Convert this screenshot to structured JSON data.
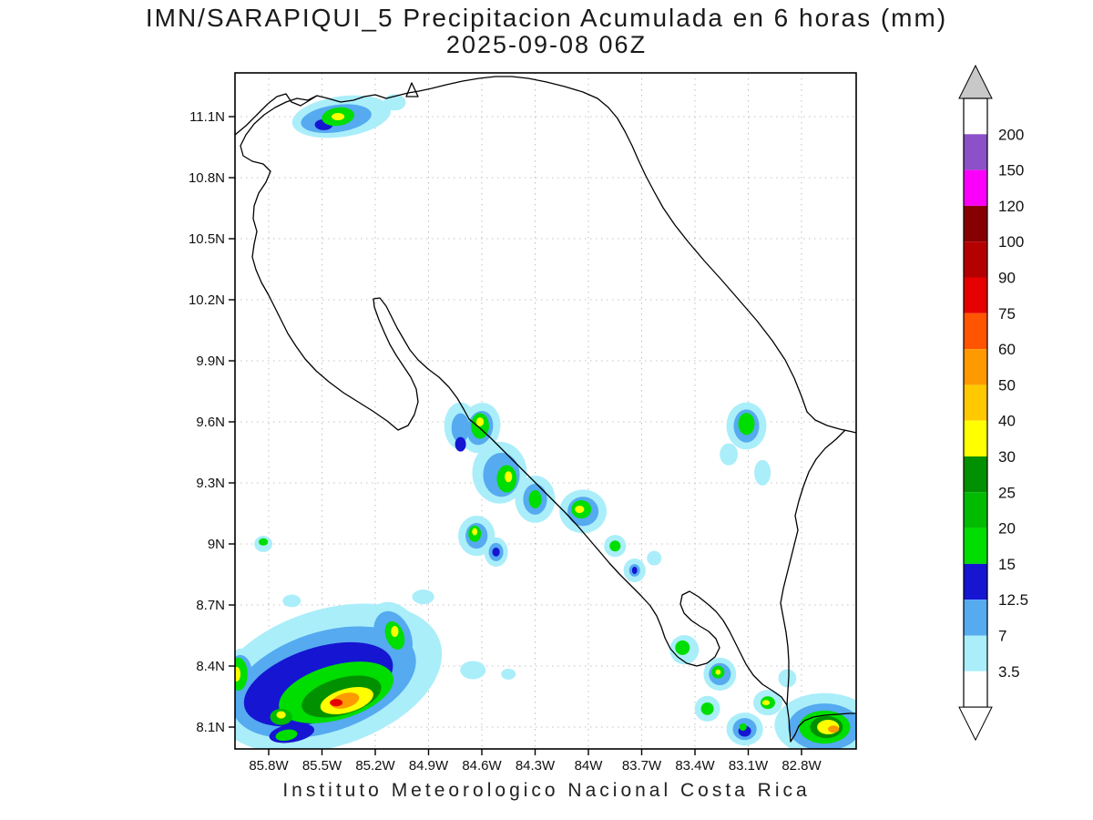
{
  "title_line1": "IMN/SARAPIQUI_5 Precipitacion Acumulada en 6 horas (mm)",
  "title_line2": "2025-09-08 06Z",
  "footer": "Instituto Meteorologico Nacional Costa Rica",
  "chart_data": {
    "type": "heatmap",
    "subtype": "precipitation-accumulation-map",
    "region": "Costa Rica",
    "units": "mm",
    "valid_time": "2025-09-08 06Z",
    "model": "IMN/SARAPIQUI_5",
    "lat_ticks": [
      "11.1N",
      "10.8N",
      "10.5N",
      "10.2N",
      "9.9N",
      "9.6N",
      "9.3N",
      "9N",
      "8.7N",
      "8.4N",
      "8.1N"
    ],
    "lat_tick_values": [
      11.1,
      10.8,
      10.5,
      10.2,
      9.9,
      9.6,
      9.3,
      9.0,
      8.7,
      8.4,
      8.1
    ],
    "lon_ticks": [
      "85.8W",
      "85.5W",
      "85.2W",
      "84.9W",
      "84.6W",
      "84.3W",
      "84W",
      "83.7W",
      "83.4W",
      "83.1W",
      "82.8W"
    ],
    "lon_tick_values": [
      -85.8,
      -85.5,
      -85.2,
      -84.9,
      -84.6,
      -84.3,
      -84.0,
      -83.7,
      -83.4,
      -83.1,
      -82.8
    ],
    "lon_range": [
      -86.0,
      -82.49
    ],
    "lat_range": [
      7.99,
      11.32
    ],
    "grid": true,
    "legend_position": "right",
    "colorbar": {
      "labels_top_to_bottom": [
        "200",
        "150",
        "120",
        "100",
        "90",
        "75",
        "60",
        "50",
        "40",
        "30",
        "25",
        "20",
        "15",
        "12.5",
        "7",
        "3.5"
      ],
      "band_colors_top_to_bottom": [
        "#ffffff",
        "#8c50c8",
        "#fa00fa",
        "#870000",
        "#b40000",
        "#e60000",
        "#ff5500",
        "#ff9900",
        "#ffc800",
        "#ffff00",
        "#009000",
        "#00bb00",
        "#00dd00",
        "#1515d2",
        "#55aaf0",
        "#aaeefa",
        "#ffffff"
      ],
      "arrow_top_color": "#c8c8c8",
      "arrow_bottom_color": "#ffffff"
    },
    "level_colors": {
      "3.5": "#aaeefa",
      "7": "#55aaf0",
      "12.5": "#1515d2",
      "15": "#00dd00",
      "20": "#00bb00",
      "25": "#009000",
      "30": "#ffff00",
      "40": "#ffc800",
      "50": "#ff9900",
      "60": "#ff5500",
      "75": "#e60000",
      "90": "#b40000",
      "100": "#870000",
      "120": "#fa00fa",
      "150": "#8c50c8",
      "200": "#ffffff"
    },
    "cells_format": [
      "lon",
      "lat",
      "radius_lon_deg",
      "radius_lat_deg",
      "rotation_deg",
      "level_mm"
    ],
    "cells": [
      [
        -85.39,
        11.1,
        0.28,
        0.1,
        -8,
        3.5
      ],
      [
        -85.42,
        11.09,
        0.2,
        0.067,
        -8,
        7
      ],
      [
        -85.49,
        11.06,
        0.051,
        0.027,
        0,
        12.5
      ],
      [
        -85.41,
        11.1,
        0.092,
        0.045,
        -8,
        15
      ],
      [
        -85.41,
        11.1,
        0.036,
        0.018,
        0,
        30
      ],
      [
        -85.09,
        11.17,
        0.062,
        0.04,
        0,
        3.5
      ],
      [
        -84.72,
        9.58,
        0.092,
        0.116,
        0,
        3.5
      ],
      [
        -84.72,
        9.57,
        0.051,
        0.072,
        0,
        7
      ],
      [
        -84.72,
        9.49,
        0.031,
        0.036,
        0,
        12.5
      ],
      [
        -84.61,
        9.57,
        0.113,
        0.125,
        15,
        3.5
      ],
      [
        -84.61,
        9.57,
        0.072,
        0.085,
        15,
        7
      ],
      [
        -84.61,
        9.58,
        0.051,
        0.063,
        0,
        15
      ],
      [
        -84.61,
        9.6,
        0.021,
        0.022,
        0,
        30
      ],
      [
        -84.5,
        9.35,
        0.154,
        0.152,
        0,
        3.5
      ],
      [
        -84.49,
        9.34,
        0.103,
        0.108,
        0,
        7
      ],
      [
        -84.46,
        9.32,
        0.056,
        0.067,
        0,
        15
      ],
      [
        -84.45,
        9.33,
        0.021,
        0.027,
        0,
        30
      ],
      [
        -84.3,
        9.22,
        0.113,
        0.116,
        0,
        3.5
      ],
      [
        -84.3,
        9.22,
        0.067,
        0.076,
        0,
        7
      ],
      [
        -84.3,
        9.22,
        0.036,
        0.045,
        0,
        15
      ],
      [
        -84.03,
        9.16,
        0.133,
        0.107,
        0,
        3.5
      ],
      [
        -84.03,
        9.16,
        0.087,
        0.072,
        0,
        7
      ],
      [
        -84.04,
        9.17,
        0.056,
        0.045,
        0,
        15
      ],
      [
        -84.05,
        9.17,
        0.026,
        0.018,
        0,
        30
      ],
      [
        -84.63,
        9.04,
        0.103,
        0.099,
        0,
        3.5
      ],
      [
        -84.63,
        9.04,
        0.062,
        0.063,
        0,
        7
      ],
      [
        -84.64,
        9.05,
        0.036,
        0.04,
        0,
        15
      ],
      [
        -84.64,
        9.06,
        0.015,
        0.018,
        0,
        30
      ],
      [
        -84.52,
        8.96,
        0.067,
        0.072,
        0,
        3.5
      ],
      [
        -84.52,
        8.96,
        0.041,
        0.045,
        0,
        7
      ],
      [
        -84.52,
        8.96,
        0.021,
        0.022,
        0,
        12.5
      ],
      [
        -85.83,
        9.0,
        0.051,
        0.04,
        0,
        3.5
      ],
      [
        -85.83,
        9.01,
        0.026,
        0.018,
        0,
        15
      ],
      [
        -83.85,
        8.99,
        0.062,
        0.054,
        0,
        3.5
      ],
      [
        -83.85,
        8.99,
        0.031,
        0.027,
        0,
        15
      ],
      [
        -83.74,
        8.87,
        0.062,
        0.058,
        0,
        3.5
      ],
      [
        -83.74,
        8.87,
        0.031,
        0.031,
        0,
        7
      ],
      [
        -83.74,
        8.87,
        0.015,
        0.018,
        0,
        12.5
      ],
      [
        -83.63,
        8.93,
        0.041,
        0.036,
        0,
        3.5
      ],
      [
        -83.11,
        9.58,
        0.113,
        0.116,
        0,
        3.5
      ],
      [
        -83.11,
        9.58,
        0.072,
        0.081,
        0,
        7
      ],
      [
        -83.11,
        9.59,
        0.046,
        0.054,
        0,
        15
      ],
      [
        -83.21,
        9.44,
        0.051,
        0.054,
        0,
        3.5
      ],
      [
        -83.02,
        9.35,
        0.046,
        0.063,
        0,
        3.5
      ],
      [
        -85.47,
        8.34,
        0.667,
        0.336,
        -18,
        3.5
      ],
      [
        -85.49,
        8.32,
        0.538,
        0.246,
        -18,
        7
      ],
      [
        -85.52,
        8.31,
        0.436,
        0.179,
        -18,
        12.5
      ],
      [
        -85.42,
        8.27,
        0.333,
        0.134,
        -16,
        15
      ],
      [
        -85.39,
        8.25,
        0.231,
        0.09,
        -16,
        25
      ],
      [
        -85.36,
        8.23,
        0.154,
        0.058,
        -16,
        30
      ],
      [
        -85.37,
        8.23,
        0.082,
        0.036,
        -16,
        50
      ],
      [
        -85.42,
        8.22,
        0.036,
        0.018,
        0,
        75
      ],
      [
        -85.1,
        8.54,
        0.154,
        0.179,
        -20,
        3.5
      ],
      [
        -85.1,
        8.54,
        0.103,
        0.134,
        -20,
        7
      ],
      [
        -85.09,
        8.55,
        0.051,
        0.072,
        -20,
        15
      ],
      [
        -85.09,
        8.57,
        0.021,
        0.027,
        0,
        30
      ],
      [
        -85.95,
        8.37,
        0.092,
        0.116,
        0,
        3.5
      ],
      [
        -85.96,
        8.36,
        0.067,
        0.094,
        0,
        7
      ],
      [
        -85.97,
        8.36,
        0.051,
        0.081,
        0,
        15
      ],
      [
        -85.98,
        8.36,
        0.021,
        0.036,
        0,
        30
      ],
      [
        -85.73,
        8.15,
        0.062,
        0.04,
        0,
        20
      ],
      [
        -85.73,
        8.16,
        0.026,
        0.018,
        0,
        30
      ],
      [
        -85.67,
        8.07,
        0.128,
        0.045,
        -10,
        12.5
      ],
      [
        -85.7,
        8.06,
        0.062,
        0.027,
        -10,
        15
      ],
      [
        -85.67,
        8.72,
        0.051,
        0.031,
        0,
        3.5
      ],
      [
        -84.93,
        8.74,
        0.062,
        0.036,
        0,
        3.5
      ],
      [
        -84.65,
        8.38,
        0.072,
        0.045,
        0,
        3.5
      ],
      [
        -84.45,
        8.36,
        0.041,
        0.027,
        0,
        3.5
      ],
      [
        -83.46,
        8.48,
        0.082,
        0.072,
        0,
        3.5
      ],
      [
        -83.47,
        8.49,
        0.041,
        0.036,
        0,
        15
      ],
      [
        -83.26,
        8.36,
        0.092,
        0.081,
        0,
        3.5
      ],
      [
        -83.26,
        8.36,
        0.062,
        0.054,
        0,
        7
      ],
      [
        -83.27,
        8.37,
        0.036,
        0.031,
        0,
        15
      ],
      [
        -83.27,
        8.37,
        0.015,
        0.013,
        0,
        30
      ],
      [
        -83.33,
        8.19,
        0.072,
        0.063,
        0,
        3.5
      ],
      [
        -83.33,
        8.19,
        0.036,
        0.031,
        0,
        15
      ],
      [
        -83.12,
        8.09,
        0.103,
        0.081,
        0,
        3.5
      ],
      [
        -83.12,
        8.09,
        0.067,
        0.054,
        0,
        7
      ],
      [
        -83.12,
        8.08,
        0.036,
        0.027,
        0,
        12.5
      ],
      [
        -83.13,
        8.1,
        0.021,
        0.018,
        0,
        15
      ],
      [
        -82.99,
        8.22,
        0.082,
        0.063,
        0,
        3.5
      ],
      [
        -82.99,
        8.22,
        0.041,
        0.031,
        0,
        15
      ],
      [
        -83.0,
        8.22,
        0.021,
        0.013,
        0,
        30
      ],
      [
        -82.67,
        8.11,
        0.282,
        0.157,
        0,
        3.5
      ],
      [
        -82.67,
        8.1,
        0.205,
        0.116,
        0,
        7
      ],
      [
        -82.67,
        8.1,
        0.144,
        0.081,
        0,
        15
      ],
      [
        -82.66,
        8.1,
        0.092,
        0.054,
        0,
        25
      ],
      [
        -82.65,
        8.1,
        0.062,
        0.036,
        0,
        30
      ],
      [
        -82.62,
        8.09,
        0.031,
        0.018,
        0,
        50
      ],
      [
        -82.88,
        8.34,
        0.051,
        0.045,
        0,
        3.5
      ]
    ]
  }
}
